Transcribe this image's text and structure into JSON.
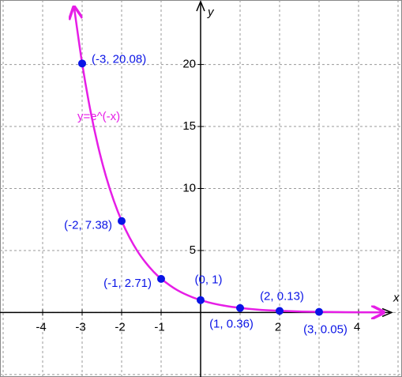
{
  "chart_data": {
    "type": "function-plot",
    "xlabel": "x",
    "ylabel": "y",
    "xlim": [
      -5,
      5
    ],
    "ylim": [
      -5.2,
      25.2
    ],
    "xticks": [
      -4,
      -3,
      -2,
      -1,
      2,
      4
    ],
    "yticks": [
      5,
      10,
      15,
      20
    ],
    "xgrid": [
      -5,
      -4,
      -3,
      -2,
      -1,
      0,
      1,
      2,
      3,
      4,
      5
    ],
    "ygrid": [
      -5,
      0,
      5,
      10,
      15,
      20
    ],
    "grid": true,
    "curve": {
      "name": "y=e^(-x)",
      "color": "#e61ee6",
      "x": [
        -3.2,
        -3,
        -2.8,
        -2.6,
        -2.4,
        -2.2,
        -2,
        -1.8,
        -1.6,
        -1.4,
        -1.2,
        -1,
        -0.6,
        -0.2,
        0.2,
        0.6,
        1,
        1.5,
        2,
        2.5,
        3,
        3.5,
        4,
        4.6
      ],
      "values": [
        24.53,
        20.09,
        16.44,
        13.46,
        11.02,
        9.03,
        7.39,
        6.05,
        4.95,
        4.06,
        3.32,
        2.72,
        1.82,
        1.22,
        0.82,
        0.55,
        0.37,
        0.22,
        0.14,
        0.08,
        0.05,
        0.03,
        0.02,
        0.01
      ]
    },
    "points": {
      "color": "#0a14e6",
      "x": [
        -3,
        -2,
        -1,
        0,
        1,
        2,
        3
      ],
      "values": [
        20.08,
        7.38,
        2.71,
        1,
        0.36,
        0.13,
        0.05
      ],
      "value_labels": [
        "(-3, 20.08)",
        "(-2, 7.38)",
        "(-1, 2.71)",
        "(0, 1)",
        "(1, 0.36)",
        "(2, 0.13)",
        "(3, 0.05)"
      ]
    }
  }
}
